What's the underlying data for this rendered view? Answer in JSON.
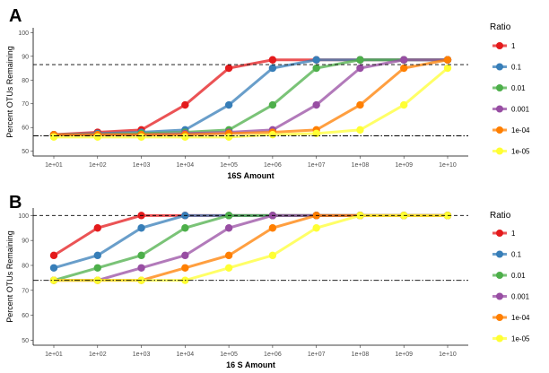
{
  "chart_data": [
    {
      "type": "line",
      "panel_tag": "A",
      "xlabel": "16S Amount",
      "ylabel": "Percent OTUs Remaining",
      "categories": [
        "1e+01",
        "1e+02",
        "1e+03",
        "1e+04",
        "1e+05",
        "1e+06",
        "1e+07",
        "1e+08",
        "1e+09",
        "1e+10"
      ],
      "ylim": [
        48,
        102
      ],
      "yticks": [
        50,
        60,
        70,
        80,
        90,
        100
      ],
      "reference_lines": [
        {
          "style": "dashed",
          "y": 86.5
        },
        {
          "style": "dashdot",
          "y": 56.5
        }
      ],
      "legend_title": "Ratio",
      "legend_position": "right",
      "series": [
        {
          "name": "1",
          "color": "#e41a1c",
          "values": [
            57,
            58,
            59,
            69.5,
            85,
            88.5,
            88.5,
            88.5,
            88.5,
            88.5
          ]
        },
        {
          "name": "0.1",
          "color": "#377eb8",
          "values": [
            57,
            57.5,
            58,
            59,
            69.5,
            85,
            88.5,
            88.5,
            88.5,
            88.5
          ]
        },
        {
          "name": "0.01",
          "color": "#4daf4a",
          "values": [
            57,
            57,
            57.5,
            58,
            59,
            69.5,
            85,
            88.5,
            88.5,
            88.5
          ]
        },
        {
          "name": "0.001",
          "color": "#984ea3",
          "values": [
            57,
            57,
            57,
            57.5,
            58,
            59,
            69.5,
            85,
            88.5,
            88.5
          ]
        },
        {
          "name": "1e-04",
          "color": "#ff7f00",
          "values": [
            57,
            57,
            57,
            57,
            57.5,
            58,
            59,
            69.5,
            85,
            88.5
          ]
        },
        {
          "name": "1e-05",
          "color": "#ffff33",
          "values": [
            56,
            56,
            56,
            56,
            56,
            57,
            57.5,
            59,
            69.5,
            85
          ]
        }
      ]
    },
    {
      "type": "line",
      "panel_tag": "B",
      "xlabel": "16 S Amount",
      "ylabel": "Percent OTUs Remaining",
      "categories": [
        "1e+01",
        "1e+02",
        "1e+03",
        "1e+04",
        "1e+05",
        "1e+06",
        "1e+07",
        "1e+08",
        "1e+09",
        "1e+10"
      ],
      "ylim": [
        48,
        103
      ],
      "yticks": [
        50,
        60,
        70,
        80,
        90,
        100
      ],
      "reference_lines": [
        {
          "style": "dashed",
          "y": 100
        },
        {
          "style": "dashdot",
          "y": 74
        }
      ],
      "legend_title": "Ratio",
      "legend_position": "right",
      "series": [
        {
          "name": "1",
          "color": "#e41a1c",
          "values": [
            84,
            95,
            100,
            100,
            100,
            100,
            100,
            100,
            100,
            100
          ]
        },
        {
          "name": "0.1",
          "color": "#377eb8",
          "values": [
            79,
            84,
            95,
            100,
            100,
            100,
            100,
            100,
            100,
            100
          ]
        },
        {
          "name": "0.01",
          "color": "#4daf4a",
          "values": [
            74,
            79,
            84,
            95,
            100,
            100,
            100,
            100,
            100,
            100
          ]
        },
        {
          "name": "0.001",
          "color": "#984ea3",
          "values": [
            74,
            74,
            79,
            84,
            95,
            100,
            100,
            100,
            100,
            100
          ]
        },
        {
          "name": "1e-04",
          "color": "#ff7f00",
          "values": [
            74,
            74,
            74,
            79,
            84,
            95,
            100,
            100,
            100,
            100
          ]
        },
        {
          "name": "1e-05",
          "color": "#ffff33",
          "values": [
            74,
            74,
            74,
            74,
            79,
            84,
            95,
            100,
            100,
            100
          ]
        }
      ]
    }
  ]
}
